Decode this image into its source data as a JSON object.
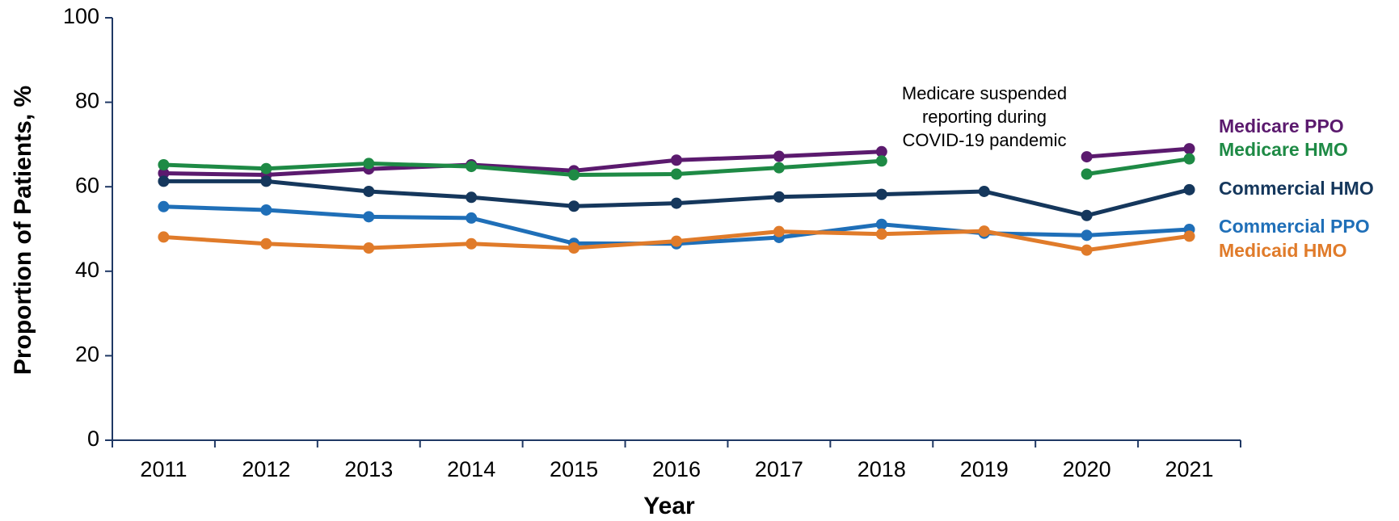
{
  "chart_data": {
    "type": "line",
    "x_label": "Year",
    "y_label": "Proportion of Patients, %",
    "annotation": [
      "Medicare suspended",
      "reporting during",
      "COVID-19 pandemic"
    ],
    "categories": [
      "2011",
      "2012",
      "2013",
      "2014",
      "2015",
      "2016",
      "2017",
      "2018",
      "2019",
      "2020",
      "2021"
    ],
    "ylim": [
      0,
      100
    ],
    "yticks": [
      0,
      20,
      40,
      60,
      80,
      100
    ],
    "grid": false,
    "legend": "right",
    "series": [
      {
        "name": "Medicare PPO",
        "color": "#5b1a6e",
        "values": [
          63.2,
          62.8,
          64.2,
          65.2,
          63.8,
          66.3,
          67.2,
          68.3,
          null,
          67.1,
          69.0
        ]
      },
      {
        "name": "Medicare HMO",
        "color": "#1e8a45",
        "values": [
          65.2,
          64.3,
          65.5,
          64.8,
          62.8,
          63.0,
          64.5,
          66.1,
          null,
          63.0,
          66.6
        ]
      },
      {
        "name": "Commercial HMO",
        "color": "#15375c",
        "values": [
          61.3,
          61.3,
          58.9,
          57.5,
          55.4,
          56.1,
          57.6,
          58.2,
          58.9,
          53.2,
          59.3
        ]
      },
      {
        "name": "Commercial PPO",
        "color": "#1f6fb8",
        "values": [
          55.3,
          54.5,
          52.9,
          52.6,
          46.6,
          46.5,
          48.0,
          51.1,
          49.0,
          48.5,
          49.9
        ]
      },
      {
        "name": "Medicaid HMO",
        "color": "#e07b2a",
        "values": [
          48.1,
          46.5,
          45.5,
          46.5,
          45.5,
          47.1,
          49.4,
          48.8,
          49.5,
          45.0,
          48.3
        ]
      }
    ]
  }
}
